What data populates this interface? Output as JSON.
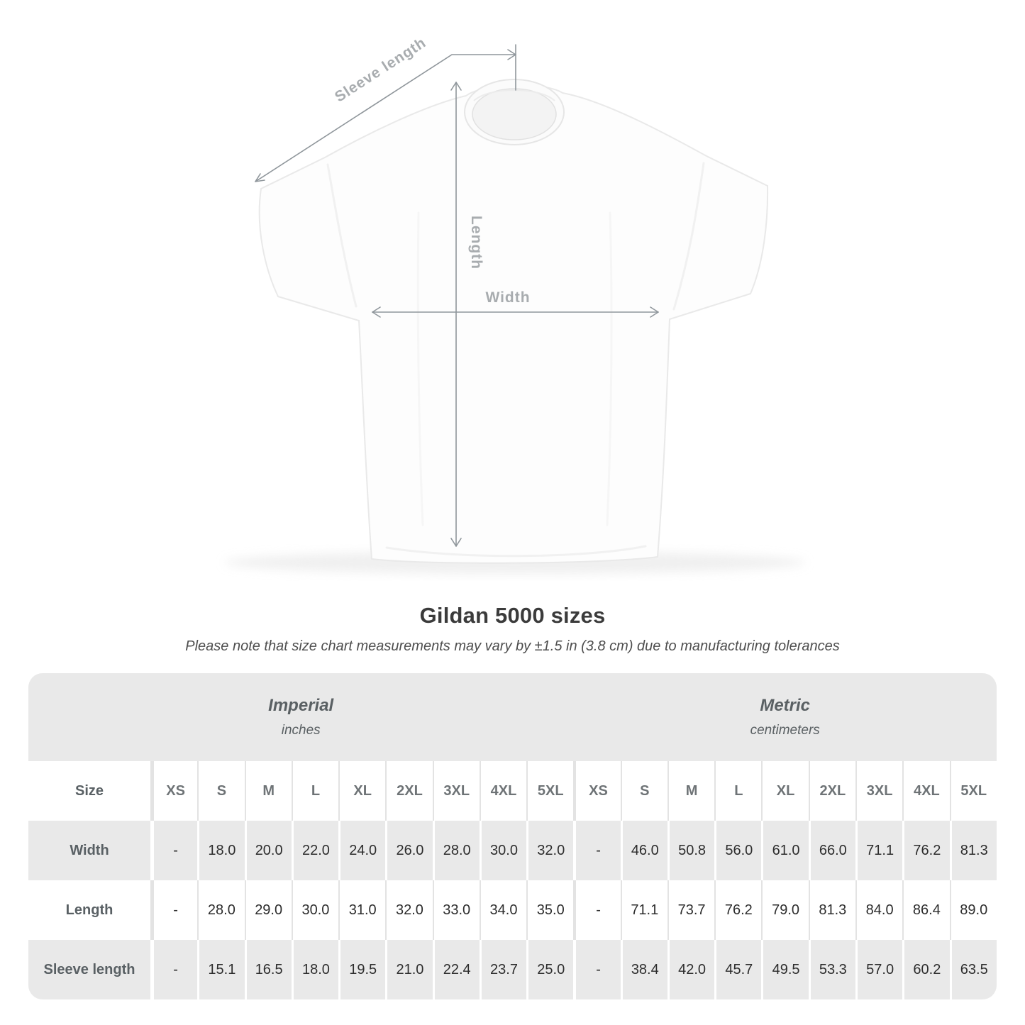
{
  "diagram": {
    "labels": {
      "sleeve": "Sleeve length",
      "length": "Length",
      "width": "Width"
    }
  },
  "title": "Gildan 5000 sizes",
  "note": "Please note that size chart measurements may vary by ±1.5 in (3.8 cm) due to manufacturing tolerances",
  "table": {
    "size_header": "Size",
    "groups": [
      {
        "name": "Imperial",
        "unit": "inches"
      },
      {
        "name": "Metric",
        "unit": "centimeters"
      }
    ],
    "sizes": [
      "XS",
      "S",
      "M",
      "L",
      "XL",
      "2XL",
      "3XL",
      "4XL",
      "5XL"
    ],
    "rows": [
      {
        "label": "Width",
        "imperial": [
          "-",
          "18.0",
          "20.0",
          "22.0",
          "24.0",
          "26.0",
          "28.0",
          "30.0",
          "32.0"
        ],
        "metric": [
          "-",
          "46.0",
          "50.8",
          "56.0",
          "61.0",
          "66.0",
          "71.1",
          "76.2",
          "81.3"
        ]
      },
      {
        "label": "Length",
        "imperial": [
          "-",
          "28.0",
          "29.0",
          "30.0",
          "31.0",
          "32.0",
          "33.0",
          "34.0",
          "35.0"
        ],
        "metric": [
          "-",
          "71.1",
          "73.7",
          "76.2",
          "79.0",
          "81.3",
          "84.0",
          "86.4",
          "89.0"
        ]
      },
      {
        "label": "Sleeve length",
        "imperial": [
          "-",
          "15.1",
          "16.5",
          "18.0",
          "19.5",
          "21.0",
          "22.4",
          "23.7",
          "25.0"
        ],
        "metric": [
          "-",
          "38.4",
          "42.0",
          "45.7",
          "49.5",
          "53.3",
          "57.0",
          "60.2",
          "63.5"
        ]
      }
    ]
  },
  "colors": {
    "band_gray": "#e9e9e9",
    "dim_line": "#8f969b",
    "dim_label": "#a8acaf",
    "title_text": "#3b3b3b",
    "value_text": "#2d2d2d"
  }
}
